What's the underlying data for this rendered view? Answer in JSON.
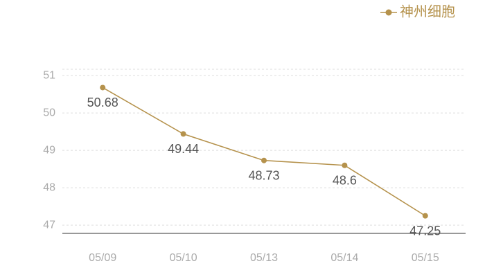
{
  "chart_data": {
    "type": "line",
    "categories": [
      "05/09",
      "05/10",
      "05/13",
      "05/14",
      "05/15"
    ],
    "series": [
      {
        "name": "神州细胞",
        "color": "#b5924c",
        "values": [
          50.68,
          49.44,
          48.73,
          48.6,
          47.25
        ]
      }
    ],
    "ylim": [
      46.78,
      51.17
    ],
    "yticks": [
      47,
      48,
      49,
      50,
      51
    ],
    "grid": true,
    "legend": "top-right"
  }
}
